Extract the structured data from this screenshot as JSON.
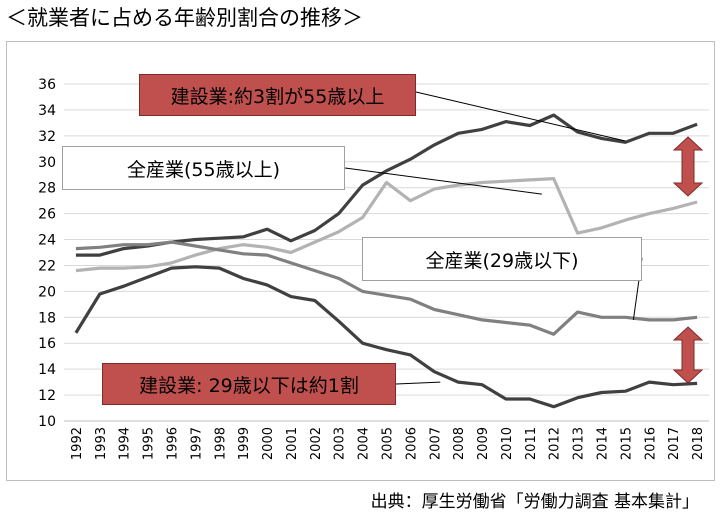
{
  "title": "＜就業者に占める年齢別割合の推移＞",
  "source": "出典：厚生労働省「労働力調査 基本集計」",
  "callouts": {
    "construction_55": "建設業:約3割が55歳以上",
    "all_55": "全産業(55歳以上)",
    "all_29": "全産業(29歳以下)",
    "construction_29": "建設業: 29歳以下は約1割"
  },
  "colors": {
    "construction_55": "#404040",
    "all_55": "#b3b3b3",
    "all_29": "#808080",
    "construction_29": "#404040",
    "callout_red": "#c0504d",
    "arrow": "#c0504d"
  },
  "chart_data": {
    "type": "line",
    "x": [
      "1992",
      "1993",
      "1994",
      "1995",
      "1996",
      "1997",
      "1998",
      "1999",
      "2000",
      "2001",
      "2002",
      "2003",
      "2004",
      "2005",
      "2006",
      "2007",
      "2008",
      "2009",
      "2010",
      "2011",
      "2012",
      "2013",
      "2014",
      "2015",
      "2016",
      "2017",
      "2018"
    ],
    "ylim": [
      10,
      36
    ],
    "yticks": [
      "10",
      "12",
      "14",
      "16",
      "18",
      "20",
      "22",
      "24",
      "26",
      "28",
      "30",
      "32",
      "34",
      "36"
    ],
    "grid": true,
    "series": [
      {
        "key": "construction_55",
        "values": [
          22.8,
          22.8,
          23.3,
          23.5,
          23.8,
          24.0,
          24.1,
          24.2,
          24.8,
          23.9,
          24.7,
          26.0,
          28.2,
          29.3,
          30.2,
          31.3,
          32.2,
          32.5,
          33.1,
          32.8,
          33.6,
          32.3,
          31.8,
          31.5,
          32.2,
          32.2,
          32.9
        ]
      },
      {
        "key": "all_55",
        "values": [
          21.6,
          21.8,
          21.8,
          21.9,
          22.2,
          22.8,
          23.3,
          23.6,
          23.4,
          23.0,
          23.8,
          24.6,
          25.7,
          28.4,
          27.0,
          27.9,
          28.2,
          28.4,
          28.5,
          28.6,
          28.7,
          24.5,
          24.9,
          25.5,
          26.0,
          26.4,
          26.9
        ]
      },
      {
        "key": "all_29",
        "values": [
          23.3,
          23.4,
          23.6,
          23.6,
          23.8,
          23.5,
          23.2,
          22.9,
          22.8,
          22.2,
          21.6,
          21.0,
          20.0,
          19.7,
          19.4,
          18.6,
          18.2,
          17.8,
          17.6,
          17.4,
          16.7,
          18.4,
          18.0,
          18.0,
          17.8,
          17.8,
          18.0
        ]
      },
      {
        "key": "construction_29",
        "values": [
          16.8,
          19.8,
          20.4,
          21.1,
          21.8,
          21.9,
          21.8,
          21.0,
          20.5,
          19.6,
          19.3,
          17.7,
          16.0,
          15.5,
          15.1,
          13.8,
          13.0,
          12.8,
          11.7,
          11.7,
          11.1,
          11.8,
          12.2,
          12.3,
          13.0,
          12.8,
          12.9
        ]
      }
    ]
  }
}
